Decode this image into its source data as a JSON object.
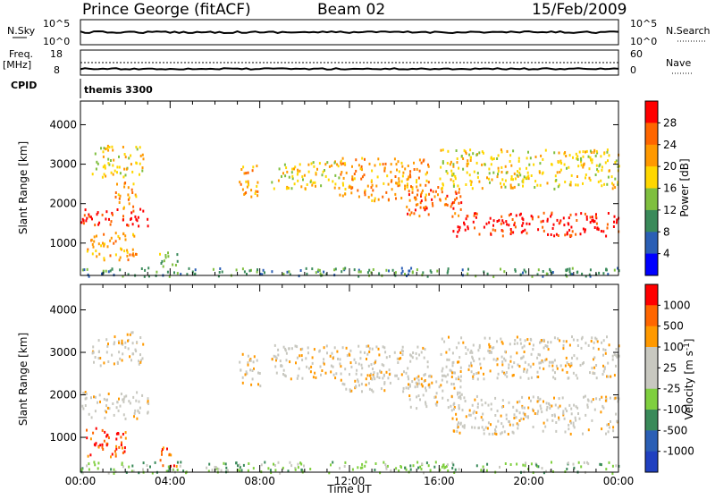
{
  "header": {
    "station": "Prince George (fitACF)",
    "beam": "Beam 02",
    "date": "15/Feb/2009"
  },
  "top_panels": {
    "nsky_label": "N.Sky",
    "nsky_ticks": [
      "10^5",
      "10^0"
    ],
    "nsearch_label": "N.Search",
    "nsearch_ticks": [
      "10^5",
      "10^0"
    ],
    "freq_label": "Freq.",
    "freq_unit": "[MHz]",
    "freq_ticks": [
      "18",
      "8"
    ],
    "nave_label": "Nave",
    "nave_ticks": [
      "60",
      "0"
    ],
    "cpid_label": "CPID",
    "cpid_value": "themis 3300"
  },
  "chart_data": [
    {
      "type": "heatmap",
      "name": "power",
      "ylabel": "Slant Range [km]",
      "xlabel": "Time UT",
      "x_ticks": [
        "00:00",
        "04:00",
        "08:00",
        "12:00",
        "16:00",
        "20:00",
        "00:00"
      ],
      "x_range_hours": [
        0,
        24
      ],
      "y_ticks": [
        "4000",
        "3000",
        "2000",
        "1000"
      ],
      "y_tick_values": [
        4000,
        3000,
        2000,
        1000
      ],
      "ylim": [
        180,
        4600
      ],
      "colorbar": {
        "label": "Power [dB]",
        "ticks": [
          "28",
          "24",
          "20",
          "16",
          "12",
          "8",
          "4"
        ],
        "colors": [
          "#0000ff",
          "#2b5fb5",
          "#3a8a5a",
          "#7fbf3f",
          "#ffd700",
          "#ff9900",
          "#ff6600",
          "#ff0000"
        ]
      },
      "bands": [
        {
          "t0": 0.0,
          "t1": 3.0,
          "r0": 1450,
          "r1": 1900,
          "level": 7
        },
        {
          "t0": 0.5,
          "t1": 2.8,
          "r0": 2700,
          "r1": 3500,
          "level": 4
        },
        {
          "t0": 0.2,
          "t1": 2.5,
          "r0": 600,
          "r1": 1300,
          "level": 5
        },
        {
          "t0": 1.5,
          "t1": 2.5,
          "r0": 1900,
          "r1": 2600,
          "level": 5
        },
        {
          "t0": 3.5,
          "t1": 4.3,
          "r0": 300,
          "r1": 800,
          "level": 3
        },
        {
          "t0": 7.0,
          "t1": 8.0,
          "r0": 2200,
          "r1": 3000,
          "level": 5
        },
        {
          "t0": 8.5,
          "t1": 11.5,
          "r0": 2400,
          "r1": 3100,
          "level": 4
        },
        {
          "t0": 11.5,
          "t1": 15.5,
          "r0": 2100,
          "r1": 3200,
          "level": 5
        },
        {
          "t0": 14.5,
          "t1": 17.0,
          "r0": 1700,
          "r1": 2500,
          "level": 6
        },
        {
          "t0": 16.5,
          "t1": 24.0,
          "r0": 1200,
          "r1": 1800,
          "level": 7
        },
        {
          "t0": 16.0,
          "t1": 24.0,
          "r0": 2400,
          "r1": 3400,
          "level": 4
        },
        {
          "t0": 0.0,
          "t1": 24.0,
          "r0": 180,
          "r1": 400,
          "level": 2
        }
      ]
    },
    {
      "type": "heatmap",
      "name": "velocity",
      "ylabel": "Slant Range [km]",
      "xlabel": "Time UT",
      "x_ticks": [
        "00:00",
        "04:00",
        "08:00",
        "12:00",
        "16:00",
        "20:00",
        "00:00"
      ],
      "x_range_hours": [
        0,
        24
      ],
      "y_ticks": [
        "4000",
        "3000",
        "2000",
        "1000"
      ],
      "y_tick_values": [
        4000,
        3000,
        2000,
        1000
      ],
      "ylim": [
        180,
        4600
      ],
      "colorbar": {
        "label": "Velocity [m s^-1]",
        "ticks": [
          "1000",
          "500",
          "100",
          "25",
          "-25",
          "-100",
          "-500",
          "-1000"
        ],
        "colors": [
          "#ff0000",
          "#ff6600",
          "#ff9900",
          "#c8c8c0",
          "#c8c8c0",
          "#7fcf3f",
          "#3a8a5a",
          "#2b5fb5",
          "#2040c0"
        ]
      },
      "bands": [
        {
          "t0": 0.0,
          "t1": 3.0,
          "r0": 1450,
          "r1": 2100,
          "level": 3
        },
        {
          "t0": 0.5,
          "t1": 2.8,
          "r0": 2700,
          "r1": 3500,
          "level": 3
        },
        {
          "t0": 0.2,
          "t1": 2.0,
          "r0": 500,
          "r1": 1300,
          "level": 1
        },
        {
          "t0": 3.5,
          "t1": 4.3,
          "r0": 300,
          "r1": 800,
          "level": 1
        },
        {
          "t0": 7.0,
          "t1": 8.0,
          "r0": 2200,
          "r1": 3000,
          "level": 3
        },
        {
          "t0": 8.5,
          "t1": 11.5,
          "r0": 2400,
          "r1": 3200,
          "level": 3
        },
        {
          "t0": 11.5,
          "t1": 15.5,
          "r0": 2100,
          "r1": 3200,
          "level": 3
        },
        {
          "t0": 14.5,
          "t1": 17.0,
          "r0": 1700,
          "r1": 2500,
          "level": 3
        },
        {
          "t0": 16.5,
          "t1": 24.0,
          "r0": 1100,
          "r1": 2000,
          "level": 3
        },
        {
          "t0": 16.0,
          "t1": 24.0,
          "r0": 2400,
          "r1": 3400,
          "level": 3
        },
        {
          "t0": 0.0,
          "t1": 24.0,
          "r0": 180,
          "r1": 450,
          "level": 5
        }
      ]
    }
  ]
}
